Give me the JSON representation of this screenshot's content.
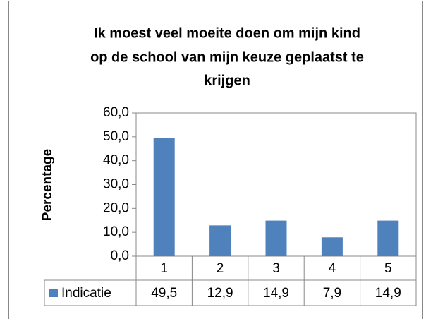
{
  "chart_data": {
    "type": "bar",
    "title_lines": [
      "Ik moest veel moeite doen om mijn kind",
      "op de school van mijn keuze geplaatst te",
      "krijgen"
    ],
    "y_axis_label": "Percentage",
    "categories": [
      "1",
      "2",
      "3",
      "4",
      "5"
    ],
    "series": [
      {
        "name": "Indicatie",
        "color": "#4f81bd",
        "values": [
          49.5,
          12.9,
          14.9,
          7.9,
          14.9
        ],
        "value_labels": [
          "49,5",
          "12,9",
          "14,9",
          "7,9",
          "14,9"
        ]
      }
    ],
    "ylim": [
      0,
      60
    ],
    "yticks": [
      {
        "value": 0,
        "label": "0,0"
      },
      {
        "value": 10,
        "label": "10,0"
      },
      {
        "value": 20,
        "label": "20,0"
      },
      {
        "value": 30,
        "label": "30,0"
      },
      {
        "value": 40,
        "label": "40,0"
      },
      {
        "value": 50,
        "label": "50,0"
      },
      {
        "value": 60,
        "label": "60,0"
      }
    ],
    "grid": false,
    "data_table": true
  }
}
